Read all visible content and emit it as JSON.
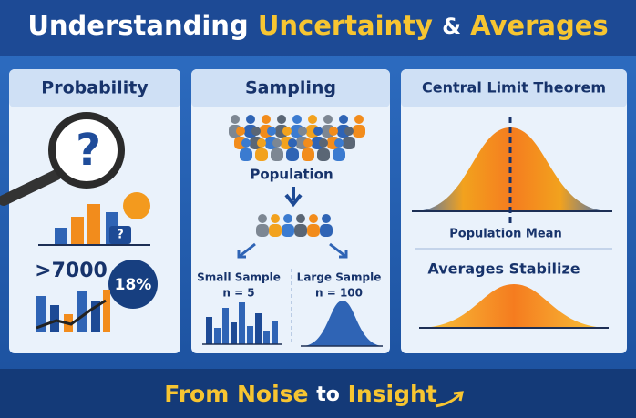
{
  "header": {
    "title_parts": [
      "Understanding",
      "Uncertainty",
      "&",
      "Averages"
    ]
  },
  "panels": [
    {
      "title": "Probability",
      "question": "?",
      "small_question": "?",
      "count": ">7000",
      "percent": "18%"
    },
    {
      "title": "Sampling",
      "population": "Population",
      "small_sample": "Small Sample",
      "small_n": "n = 5",
      "large_sample": "Large Sample",
      "large_n": "n = 100"
    },
    {
      "title": "Central Limit Theorem",
      "mean_label": "Population Mean",
      "stabilize_label": "Averages Stabilize"
    }
  ],
  "footer": {
    "parts": [
      "From Noise",
      "to",
      "Insight"
    ]
  }
}
